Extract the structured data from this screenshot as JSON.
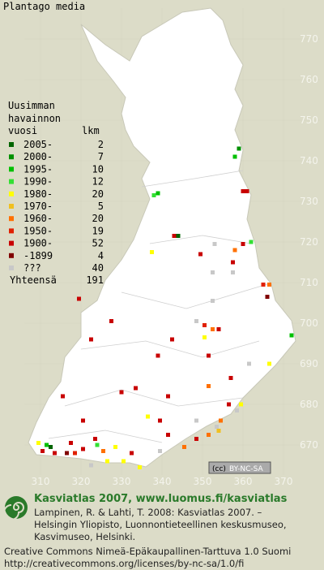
{
  "title": "Plantago media",
  "legend": {
    "heading": [
      "Uusimman",
      "havainnon"
    ],
    "col_period": "vuosi",
    "col_count": "lkm",
    "rows": [
      {
        "period": "2005-",
        "count": 2,
        "color": "#006400",
        "squares": [
          [
            343.5,
            721
          ],
          [
            312,
            669
          ]
        ]
      },
      {
        "period": "2000-",
        "count": 7,
        "color": "#009000",
        "squares": [
          [
            358.5,
            742.5
          ]
        ]
      },
      {
        "period": "1995-",
        "count": 10,
        "color": "#00c000",
        "squares": [
          [
            357.5,
            740.5
          ],
          [
            338.5,
            731.5
          ],
          [
            371.5,
            696.5
          ],
          [
            311,
            669.5
          ]
        ]
      },
      {
        "period": "1990-",
        "count": 12,
        "color": "#33e033",
        "squares": [
          [
            337.5,
            731
          ],
          [
            361.5,
            719.5
          ],
          [
            323.5,
            669.5
          ]
        ]
      },
      {
        "period": "1980-",
        "count": 20,
        "color": "#ffff00",
        "squares": [
          [
            337,
            717
          ],
          [
            350,
            696
          ],
          [
            366,
            689.5
          ],
          [
            359,
            679.5
          ],
          [
            336,
            676.5
          ],
          [
            309,
            670
          ],
          [
            330,
            665.5
          ],
          [
            328,
            669
          ],
          [
            334,
            664
          ],
          [
            326,
            665.5
          ]
        ]
      },
      {
        "period": "1970-",
        "count": 5,
        "color": "#f0c020",
        "squares": [
          [
            353.5,
            673
          ]
        ]
      },
      {
        "period": "1960-",
        "count": 20,
        "color": "#ff7000",
        "squares": [
          [
            357.5,
            717.5
          ],
          [
            366,
            709
          ],
          [
            352,
            698
          ],
          [
            351,
            684
          ],
          [
            354,
            675.5
          ],
          [
            325,
            668
          ],
          [
            345,
            669
          ],
          [
            351,
            672
          ]
        ]
      },
      {
        "period": "1950-",
        "count": 19,
        "color": "#e02000",
        "squares": [
          [
            364.5,
            709
          ],
          [
            350,
            699
          ],
          [
            318,
            667.5
          ]
        ]
      },
      {
        "period": "1900-",
        "count": 52,
        "color": "#c80000",
        "squares": [
          [
            359.5,
            732
          ],
          [
            360.5,
            732
          ],
          [
            342.5,
            721
          ],
          [
            359.5,
            719
          ],
          [
            357,
            714.5
          ],
          [
            349,
            716.5
          ],
          [
            319,
            705.5
          ],
          [
            327,
            700
          ],
          [
            322,
            695.5
          ],
          [
            353.5,
            698
          ],
          [
            342,
            695.5
          ],
          [
            338.5,
            691.5
          ],
          [
            351,
            691.5
          ],
          [
            356.5,
            686
          ],
          [
            329.5,
            682.5
          ],
          [
            333,
            683.5
          ],
          [
            341,
            681.5
          ],
          [
            356,
            679.5
          ],
          [
            315,
            681.5
          ],
          [
            320,
            675.5
          ],
          [
            339,
            675.5
          ],
          [
            310,
            668
          ],
          [
            313,
            667.5
          ],
          [
            317,
            670
          ],
          [
            320,
            668.5
          ],
          [
            323,
            671
          ],
          [
            332,
            667.5
          ],
          [
            341,
            672
          ],
          [
            348,
            671
          ]
        ]
      },
      {
        "period": "-1899",
        "count": 4,
        "color": "#800000",
        "squares": [
          [
            365.5,
            706
          ],
          [
            316,
            667.5
          ]
        ]
      },
      {
        "period": "???",
        "count": 40,
        "color": "#c8c8c8",
        "squares": [
          [
            352.5,
            719
          ],
          [
            352,
            712
          ],
          [
            357,
            712
          ],
          [
            348,
            700
          ],
          [
            361,
            689.5
          ],
          [
            358,
            678
          ],
          [
            348,
            675.5
          ],
          [
            339,
            668
          ],
          [
            353,
            674
          ],
          [
            322,
            664.5
          ],
          [
            352,
            705
          ]
        ]
      }
    ],
    "total_label": "Yhteensä",
    "total": 191
  },
  "xticks": [
    310,
    320,
    330,
    340,
    350,
    360,
    370
  ],
  "yticks": [
    770,
    760,
    750,
    740,
    730,
    720,
    710,
    700,
    690,
    680,
    670
  ],
  "badge": [
    "(cc)",
    "BY-NC-SA"
  ],
  "footer": {
    "site": "Kasviatlas 2007, www.luomus.fi/kasviatlas",
    "citation": [
      "Lampinen, R. & Lahti, T. 2008: Kasviatlas 2007. –",
      "Helsingin Yliopisto, Luonnontieteellinen keskusmuseo,",
      "Kasvimuseo, Helsinki."
    ],
    "license": [
      "Creative Commons Nimeä-Epäkaupallinen-Tarttuva 1.0 Suomi",
      "http://creativecommons.org/licenses/by-nc-sa/1.0/fi"
    ]
  }
}
